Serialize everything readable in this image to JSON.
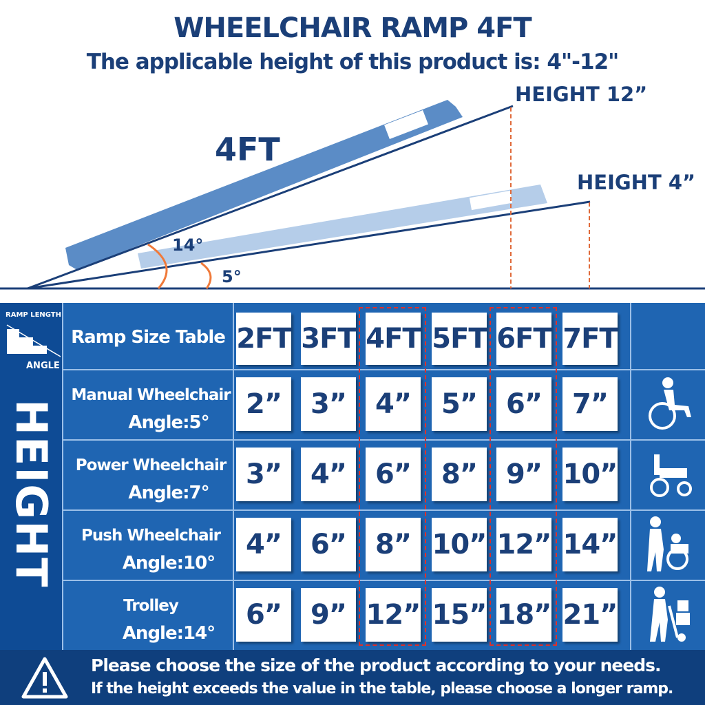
{
  "header": {
    "title": "WHEELCHAIR RAMP 4FT",
    "subtitle": "The applicable height of this product is: 4\"-12\""
  },
  "diagram": {
    "ramp_label": "4FT",
    "height_high": "HEIGHT 12”",
    "height_low": "HEIGHT 4”",
    "angle_high": "14°",
    "angle_low": "5°"
  },
  "table": {
    "corner_top": "RAMP LENGTH",
    "corner_bottom": "ANGLE",
    "side_label": "HEIGHT",
    "header_label": "Ramp Size Table",
    "columns": [
      "2FT",
      "3FT",
      "4FT",
      "5FT",
      "6FT",
      "7FT"
    ],
    "highlighted_columns": [
      "4FT",
      "6FT"
    ],
    "rows": [
      {
        "name": "Manual Wheelchair",
        "angle": "Angle:5°",
        "icon": "manual-wheelchair-icon",
        "values": [
          "2”",
          "3”",
          "4”",
          "5”",
          "6”",
          "7”"
        ]
      },
      {
        "name": "Power Wheelchair",
        "angle": "Angle:7°",
        "icon": "power-wheelchair-icon",
        "values": [
          "3”",
          "4”",
          "6”",
          "8”",
          "9”",
          "10”"
        ]
      },
      {
        "name": "Push Wheelchair",
        "angle": "Angle:10°",
        "icon": "push-wheelchair-icon",
        "values": [
          "4”",
          "6”",
          "8”",
          "10”",
          "12”",
          "14”"
        ]
      },
      {
        "name": "Trolley",
        "angle": "Angle:14°",
        "icon": "trolley-icon",
        "values": [
          "6”",
          "9”",
          "12”",
          "15”",
          "18”",
          "21”"
        ]
      }
    ]
  },
  "footer": {
    "line1": "Please choose the size of the product according to your needs.",
    "line2": "If the height exceeds the value in the table, please choose a longer ramp."
  },
  "colors": {
    "navy": "#1b3f78",
    "table_blue": "#1f65b2",
    "highlight": "#e0302a",
    "angle_arc": "#f07a3a"
  }
}
